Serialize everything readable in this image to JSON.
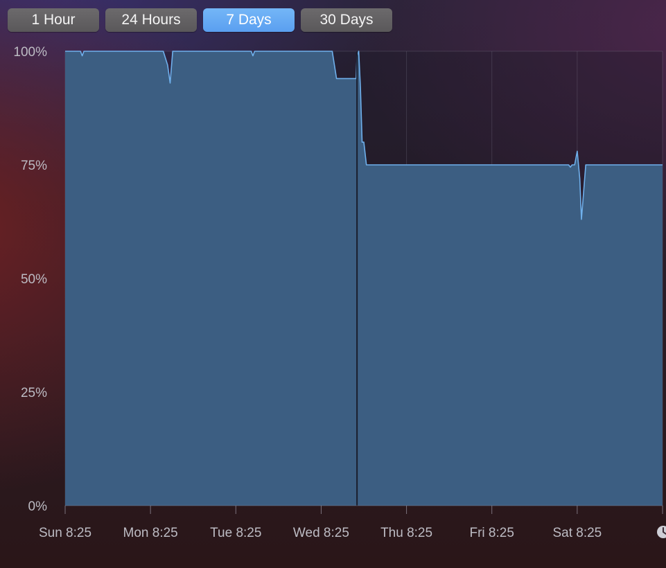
{
  "tabs": [
    {
      "label": "1 Hour",
      "active": false
    },
    {
      "label": "24 Hours",
      "active": false
    },
    {
      "label": "7 Days",
      "active": true
    },
    {
      "label": "30 Days",
      "active": false
    }
  ],
  "colors": {
    "area_fill": "#3c5e82",
    "line": "#6fb0ec",
    "tab_active": "#5ea4f2",
    "tab_inactive": "#626062",
    "label": "#bdbcc4"
  },
  "clock_icon": "clock-icon",
  "chart_data": {
    "type": "area",
    "title": "",
    "xlabel": "",
    "ylabel": "",
    "ylim": [
      0,
      100
    ],
    "xlim": [
      0,
      7
    ],
    "y_tick_labels": [
      "100%",
      "75%",
      "50%",
      "25%",
      "0%"
    ],
    "y_tick_values": [
      100,
      75,
      50,
      25,
      0
    ],
    "x_tick_labels": [
      "Sun 8:25",
      "Mon 8:25",
      "Tue 8:25",
      "Wed 8:25",
      "Thu 8:25",
      "Fri 8:25",
      "Sat 8:25"
    ],
    "x_tick_values": [
      0,
      1,
      2,
      3,
      4,
      5,
      6
    ],
    "grid": true,
    "series": [
      {
        "name": "",
        "x": [
          0,
          0.18,
          0.2,
          0.22,
          1.15,
          1.2,
          1.23,
          1.26,
          1.3,
          2.18,
          2.2,
          2.22,
          3.13,
          3.18,
          3.41,
          3.42,
          3.44,
          3.46,
          3.48,
          3.5,
          3.53,
          3.55,
          3.57,
          5.9,
          5.92,
          5.94,
          5.97,
          6.0,
          6.03,
          6.05,
          6.1,
          7
        ],
        "y": [
          100,
          100,
          99,
          100,
          100,
          97,
          93,
          100,
          100,
          100,
          99,
          100,
          100,
          94,
          94,
          99,
          100,
          92,
          80,
          80,
          75,
          75,
          75,
          75,
          74.5,
          75,
          75,
          78,
          72,
          63,
          75,
          75
        ]
      }
    ]
  }
}
